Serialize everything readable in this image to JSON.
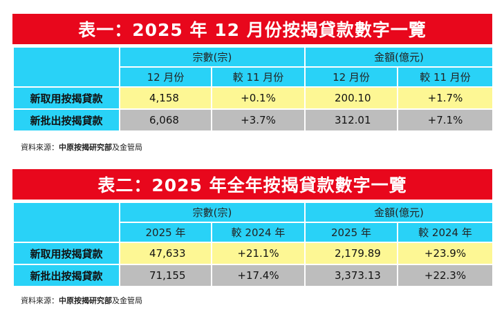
{
  "source": {
    "prefix": "資料來源：",
    "org": "中原按揭研究部",
    "suffix": "及金管局"
  },
  "tables": [
    {
      "title": "表一：2025 年 12 月份按揭貸款數字一覽",
      "group1": "宗數(宗)",
      "group2": "金額(億元)",
      "sub1": "12 月份",
      "sub2": "較 11 月份",
      "sub3": "12 月份",
      "sub4": "較 11 月份",
      "rows": [
        {
          "label": "新取用按揭貸款",
          "c1": "4,158",
          "c2": "+0.1%",
          "c3": "200.10",
          "c4": "+1.7%"
        },
        {
          "label": "新批出按揭貸款",
          "c1": "6,068",
          "c2": "+3.7%",
          "c3": "312.01",
          "c4": "+7.1%"
        }
      ]
    },
    {
      "title": "表二：2025 年全年按揭貸款數字一覽",
      "group1": "宗數(宗)",
      "group2": "金額(億元)",
      "sub1": "2025 年",
      "sub2": "較 2024 年",
      "sub3": "2025 年",
      "sub4": "較 2024 年",
      "rows": [
        {
          "label": "新取用按揭貸款",
          "c1": "47,633",
          "c2": "+21.1%",
          "c3": "2,179.89",
          "c4": "+23.9%"
        },
        {
          "label": "新批出按揭貸款",
          "c1": "71,155",
          "c2": "+17.4%",
          "c3": "3,373.13",
          "c4": "+22.3%"
        }
      ]
    }
  ],
  "colors": {
    "title_bg": "#e8071c",
    "header_bg": "#29d2f7",
    "row1_bg": "#fdf794",
    "row2_bg": "#bdbdbd"
  }
}
